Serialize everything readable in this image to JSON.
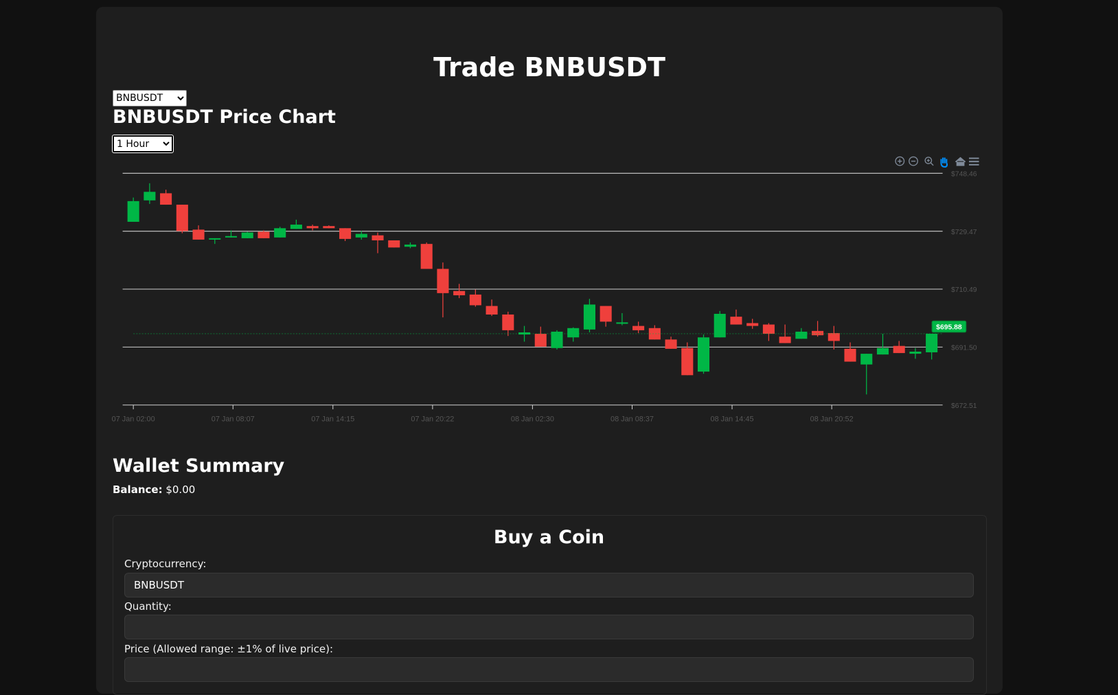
{
  "page": {
    "title": "Trade BNBUSDT",
    "symbol_select": "BNBUSDT",
    "chart_title": "BNBUSDT Price Chart",
    "interval_select": "1 Hour"
  },
  "chart_data": {
    "type": "candlestick",
    "x": [
      "07 Jan 02:00",
      "07 Jan 03:00",
      "07 Jan 04:00",
      "07 Jan 05:00",
      "07 Jan 06:00",
      "07 Jan 07:00",
      "07 Jan 08:00",
      "07 Jan 09:00",
      "07 Jan 10:00",
      "07 Jan 11:00",
      "07 Jan 12:00",
      "07 Jan 13:00",
      "07 Jan 14:00",
      "07 Jan 15:00",
      "07 Jan 16:00",
      "07 Jan 17:00",
      "07 Jan 18:00",
      "07 Jan 19:00",
      "07 Jan 20:00",
      "07 Jan 21:00",
      "07 Jan 22:00",
      "07 Jan 23:00",
      "08 Jan 00:00",
      "08 Jan 01:00",
      "08 Jan 02:00",
      "08 Jan 03:00",
      "08 Jan 04:00",
      "08 Jan 05:00",
      "08 Jan 06:00",
      "08 Jan 07:00",
      "08 Jan 08:00",
      "08 Jan 09:00",
      "08 Jan 10:00",
      "08 Jan 11:00",
      "08 Jan 12:00",
      "08 Jan 13:00",
      "08 Jan 14:00",
      "08 Jan 15:00",
      "08 Jan 16:00",
      "08 Jan 17:00",
      "08 Jan 18:00",
      "08 Jan 19:00",
      "08 Jan 20:00",
      "08 Jan 21:00",
      "08 Jan 22:00",
      "08 Jan 23:00",
      "09 Jan 00:00",
      "09 Jan 01:00",
      "09 Jan 02:00",
      "09 Jan 03:00"
    ],
    "open": [
      732.56,
      739.58,
      741.91,
      738.17,
      729.99,
      726.72,
      727.42,
      727.18,
      729.29,
      727.42,
      730.22,
      731.16,
      731.16,
      730.46,
      727.42,
      728.12,
      726.48,
      724.38,
      725.31,
      717.13,
      709.88,
      708.71,
      704.97,
      702.17,
      695.62,
      695.85,
      691.18,
      694.68,
      697.26,
      704.97,
      699.13,
      698.43,
      697.72,
      693.98,
      691.18,
      683.46,
      694.68,
      701.46,
      699.36,
      698.89,
      694.92,
      694.22,
      696.79,
      696.09,
      690.94,
      685.8,
      689.07,
      691.88,
      689.31,
      689.78
    ],
    "high": [
      740.51,
      745.19,
      743.08,
      738.17,
      731.39,
      727.18,
      729.75,
      729.29,
      729.75,
      730.92,
      733.26,
      731.63,
      731.39,
      730.46,
      729.52,
      729.05,
      726.48,
      725.78,
      725.78,
      719.23,
      712.22,
      710.35,
      707.08,
      703.1,
      698.43,
      698.2,
      697.02,
      697.96,
      707.31,
      704.97,
      702.63,
      699.83,
      698.66,
      694.92,
      693.04,
      695.62,
      703.33,
      703.8,
      700.76,
      699.36,
      698.89,
      697.72,
      700.06,
      698.43,
      693.04,
      689.31,
      695.85,
      693.51,
      691.18,
      695.88
    ],
    "low": [
      732.56,
      738.41,
      738.17,
      728.82,
      726.72,
      725.31,
      727.42,
      727.18,
      727.18,
      727.42,
      730.22,
      729.75,
      730.46,
      726.25,
      726.72,
      722.27,
      724.14,
      723.91,
      717.13,
      701.23,
      707.54,
      704.74,
      701.7,
      695.15,
      693.28,
      691.64,
      690.71,
      693.28,
      696.32,
      698.19,
      698.66,
      696.09,
      693.98,
      690.94,
      682.29,
      682.76,
      694.68,
      698.89,
      697.49,
      693.51,
      692.81,
      694.22,
      694.92,
      690.71,
      686.73,
      675.98,
      689.07,
      689.54,
      687.67,
      687.44
    ],
    "close": [
      739.34,
      742.38,
      738.17,
      729.52,
      726.72,
      727.18,
      727.88,
      729.05,
      727.18,
      730.46,
      731.63,
      730.46,
      730.46,
      726.95,
      728.59,
      726.48,
      724.14,
      725.08,
      717.13,
      709.18,
      708.48,
      705.21,
      702.17,
      697.02,
      696.32,
      691.64,
      696.55,
      697.72,
      705.44,
      699.83,
      699.6,
      697.02,
      693.98,
      690.94,
      682.29,
      694.68,
      702.4,
      698.89,
      698.43,
      695.85,
      692.81,
      696.55,
      695.38,
      693.51,
      686.73,
      689.31,
      691.18,
      689.54,
      690.01,
      695.88
    ],
    "up_color": "#00b746",
    "down_color": "#ef403c",
    "ylim": [
      672.51,
      748.46
    ],
    "yticks": [
      {
        "value": 748.46,
        "label": "$748.46"
      },
      {
        "value": 729.47,
        "label": "$729.47"
      },
      {
        "value": 710.49,
        "label": "$710.49"
      },
      {
        "value": 691.5,
        "label": "$691.50"
      },
      {
        "value": 672.51,
        "label": "$672.51"
      }
    ],
    "xticks": [
      "07 Jan 02:00",
      "07 Jan 08:07",
      "07 Jan 14:15",
      "07 Jan 20:22",
      "08 Jan 02:30",
      "08 Jan 08:37",
      "08 Jan 14:45",
      "08 Jan 20:52"
    ],
    "grid": true,
    "last_price_label": "$695.88"
  },
  "wallet": {
    "title": "Wallet Summary",
    "balance_label": "Balance:",
    "balance": "$0.00"
  },
  "buy_form": {
    "title": "Buy a Coin",
    "fields": [
      {
        "label": "Cryptocurrency:",
        "value": "BNBUSDT"
      },
      {
        "label": "Quantity:"
      },
      {
        "label": "Price (Allowed range: ±1% of live price):"
      }
    ]
  }
}
